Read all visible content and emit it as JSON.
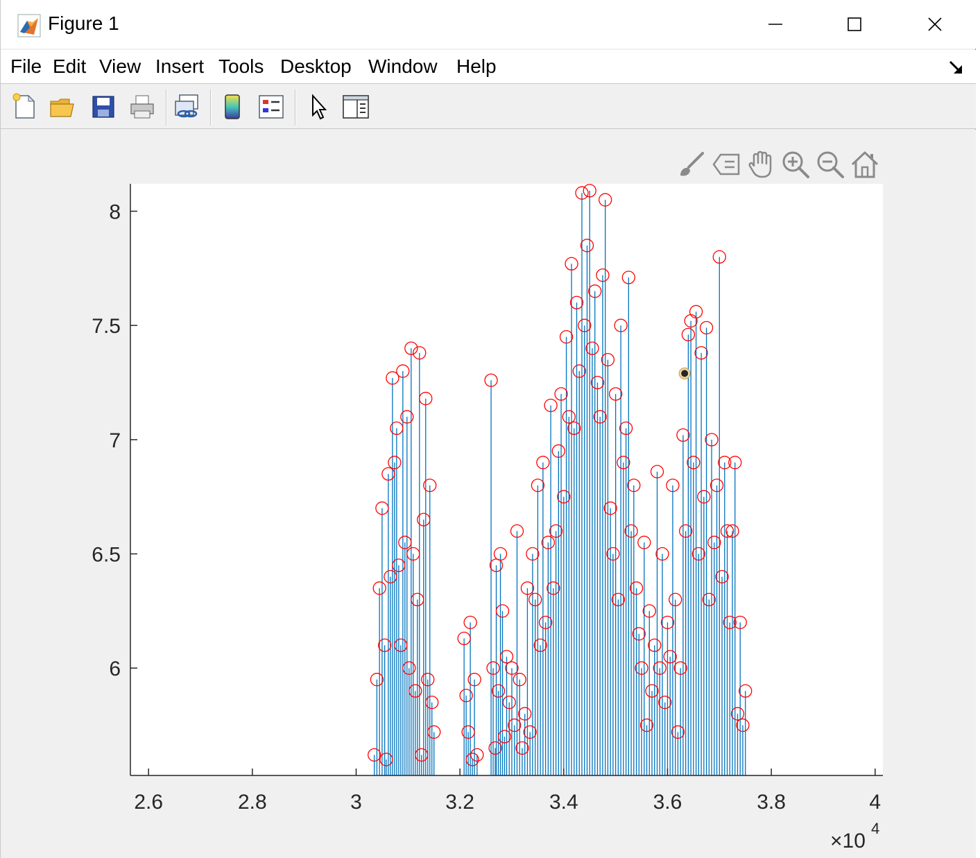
{
  "window": {
    "title": "Figure 1",
    "controls": [
      "minimize",
      "maximize",
      "close"
    ]
  },
  "menu": {
    "items": [
      "File",
      "Edit",
      "View",
      "Insert",
      "Tools",
      "Desktop",
      "Window",
      "Help"
    ]
  },
  "toolbar": {
    "buttons": [
      "new-figure-icon",
      "open-file-icon",
      "save-icon",
      "print-icon",
      "link-plot-icon",
      "colorbar-icon",
      "legend-icon",
      "edit-plot-arrow-icon",
      "property-inspector-icon"
    ]
  },
  "axes_toolbar": {
    "buttons": [
      "brush-icon",
      "data-tips-icon",
      "pan-hand-icon",
      "zoom-in-icon",
      "zoom-out-icon",
      "restore-view-home-icon"
    ]
  },
  "colors": {
    "stem_line": "#0072BD",
    "marker": "#FF0000",
    "axes_background": "#FFFFFF",
    "figure_background": "#F0F0F0",
    "datatip_marker": "#262626"
  },
  "chart_data": {
    "type": "stem",
    "title": "",
    "xlabel": "",
    "ylabel": "",
    "xlim": [
      25650,
      40150
    ],
    "ylim": [
      5.53,
      8.12
    ],
    "x_ticks": [
      26000,
      28000,
      30000,
      32000,
      34000,
      36000,
      38000,
      40000
    ],
    "x_tick_labels": [
      "2.6",
      "2.8",
      "3",
      "3.2",
      "3.4",
      "3.6",
      "3.8",
      "4"
    ],
    "x_exponent_label": "×10",
    "x_exponent_power": "4",
    "y_ticks": [
      6,
      6.5,
      7,
      7.5,
      8
    ],
    "y_tick_labels": [
      "6",
      "6.5",
      "7",
      "7.5",
      "8"
    ],
    "grid": false,
    "marker": "open circle",
    "baseline": 5.53,
    "series": [
      {
        "x": [
          30350,
          30400,
          30450,
          30500,
          30550,
          30580,
          30620,
          30660,
          30700,
          30740,
          30780,
          30820,
          30860,
          30900,
          30940,
          30980,
          31020,
          31060,
          31100,
          31140,
          31180,
          31220,
          31260,
          31300,
          31340,
          31380,
          31420,
          31460,
          31500,
          32080,
          32120,
          32160,
          32200,
          32240,
          32280,
          32330,
          32600,
          32640,
          32680,
          32700,
          32740,
          32780,
          32820,
          32860,
          32900,
          32950,
          33000,
          33050,
          33100,
          33150,
          33200,
          33250,
          33300,
          33350,
          33400,
          33450,
          33500,
          33550,
          33600,
          33650,
          33700,
          33750,
          33800,
          33850,
          33900,
          33950,
          34000,
          34050,
          34100,
          34150,
          34200,
          34250,
          34300,
          34350,
          34400,
          34450,
          34500,
          34550,
          34600,
          34650,
          34700,
          34750,
          34800,
          34850,
          34900,
          34950,
          35000,
          35050,
          35100,
          35150,
          35200,
          35250,
          35300,
          35350,
          35400,
          35450,
          35500,
          35550,
          35600,
          35650,
          35700,
          35750,
          35800,
          35850,
          35900,
          35950,
          36000,
          36050,
          36100,
          36150,
          36200,
          36250,
          36300,
          36350,
          36400,
          36450,
          36500,
          36550,
          36600,
          36650,
          36700,
          36750,
          36800,
          36850,
          36900,
          36950,
          37000,
          37050,
          37100,
          37150,
          37200,
          37250,
          37300,
          37350,
          37400,
          37450,
          37500
        ],
        "y": [
          5.62,
          5.95,
          6.35,
          6.7,
          6.1,
          5.6,
          6.85,
          6.4,
          7.27,
          6.9,
          7.05,
          6.45,
          6.1,
          7.3,
          6.55,
          7.1,
          6.0,
          7.4,
          6.5,
          5.9,
          6.3,
          7.38,
          5.62,
          6.65,
          7.18,
          5.95,
          6.8,
          5.85,
          5.72,
          6.13,
          5.88,
          5.72,
          6.2,
          5.6,
          5.95,
          5.62,
          7.26,
          6.0,
          5.65,
          6.45,
          5.9,
          6.5,
          6.25,
          5.7,
          6.05,
          5.85,
          6.0,
          5.75,
          6.6,
          5.95,
          5.65,
          5.8,
          6.35,
          5.72,
          6.5,
          6.3,
          6.8,
          6.1,
          6.9,
          6.2,
          6.55,
          7.15,
          6.35,
          6.6,
          6.95,
          7.2,
          6.75,
          7.45,
          7.1,
          7.77,
          7.05,
          7.6,
          7.3,
          8.08,
          7.5,
          7.85,
          8.09,
          7.4,
          7.65,
          7.25,
          7.1,
          7.72,
          8.05,
          7.35,
          6.7,
          6.5,
          7.2,
          6.3,
          7.5,
          6.9,
          7.05,
          7.71,
          6.6,
          6.8,
          6.35,
          6.15,
          6.0,
          6.55,
          5.75,
          6.25,
          5.9,
          6.1,
          6.86,
          6.0,
          6.5,
          5.85,
          6.2,
          6.05,
          6.8,
          6.3,
          5.72,
          6.0,
          7.02,
          6.6,
          7.46,
          7.52,
          6.9,
          7.56,
          6.5,
          7.38,
          6.75,
          7.49,
          6.3,
          7.0,
          6.55,
          6.8,
          7.8,
          6.4,
          6.9,
          6.6,
          6.2,
          6.6,
          6.9,
          5.8,
          6.2,
          5.75,
          5.9
        ]
      }
    ],
    "datatip": {
      "x": 36330,
      "y": 7.29
    }
  }
}
